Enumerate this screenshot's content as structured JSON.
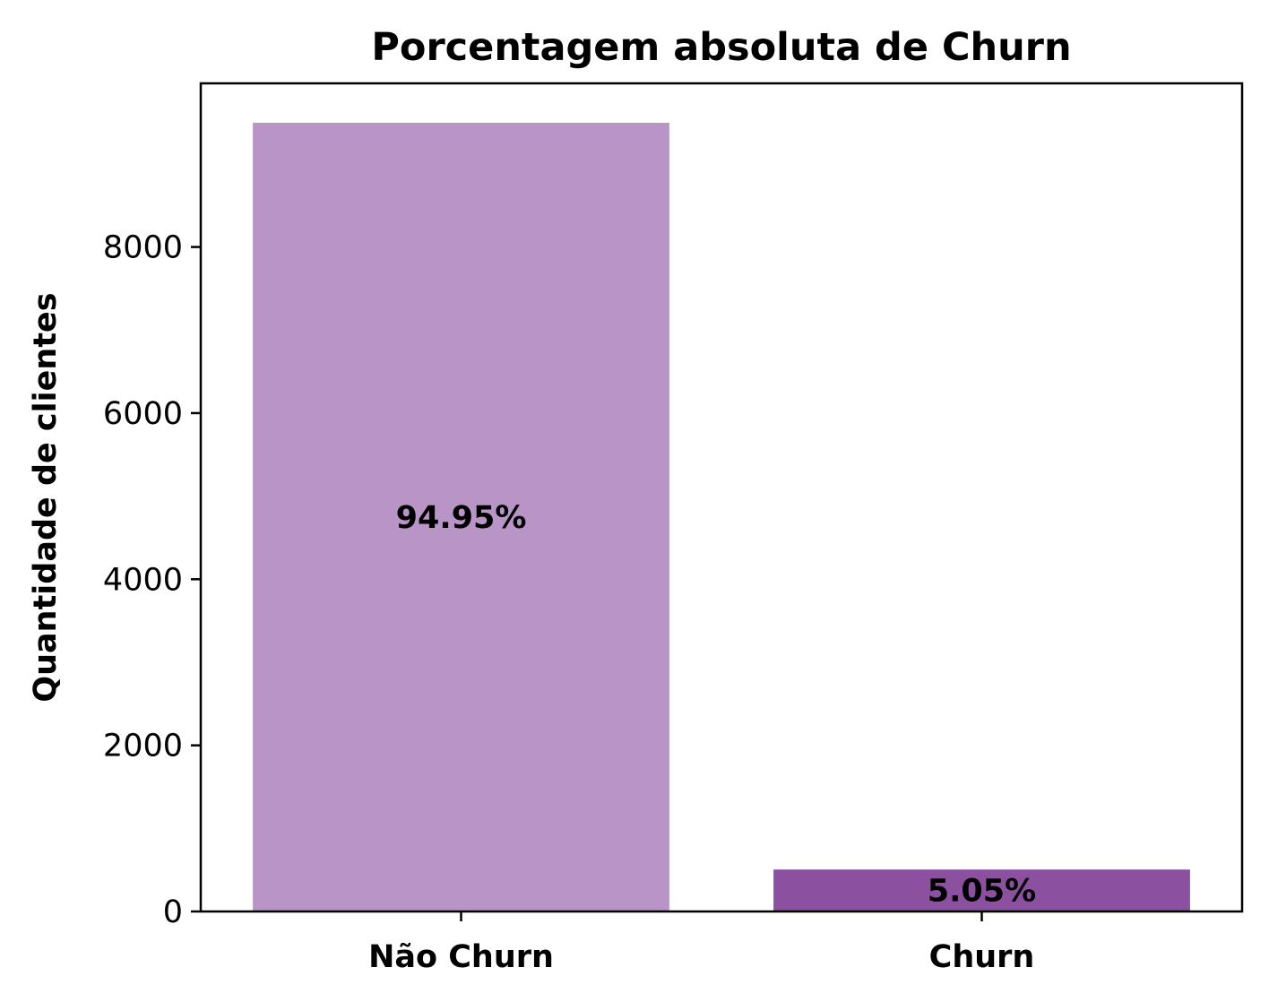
{
  "chart_data": {
    "type": "bar",
    "title": "Porcentagem absoluta de Churn",
    "xlabel": "",
    "ylabel": "Quantidade de clientes",
    "categories": [
      "Não Churn",
      "Churn"
    ],
    "values": [
      9495,
      505
    ],
    "data_labels": [
      "94.95%",
      "5.05%"
    ],
    "colors": [
      "#b995c7",
      "#8b509f"
    ],
    "ylim": [
      0,
      9970
    ],
    "yticks": [
      0,
      2000,
      4000,
      6000,
      8000
    ],
    "ytick_labels": [
      "0",
      "2000",
      "4000",
      "6000",
      "8000"
    ],
    "grid": false,
    "legend": "none"
  }
}
